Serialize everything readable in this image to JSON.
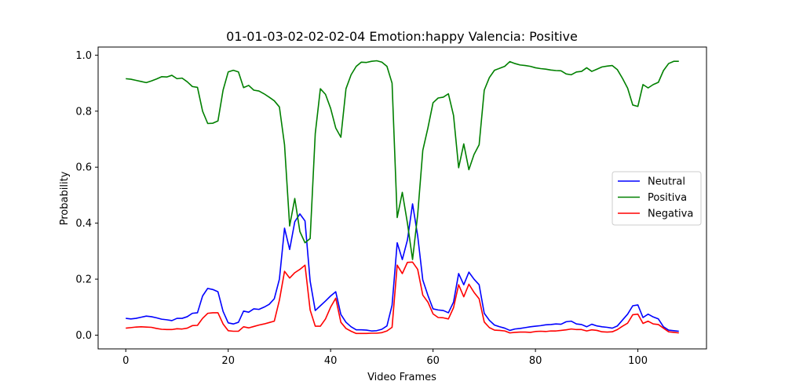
{
  "chart_data": {
    "type": "line",
    "title": "01-01-03-02-02-02-04 Emotion:happy Valencia: Positive",
    "xlabel": "Video Frames",
    "ylabel": "Probability",
    "xlim": [
      -5.4,
      113.4
    ],
    "ylim": [
      -0.049,
      1.029
    ],
    "xticks": [
      0,
      20,
      40,
      60,
      80,
      100
    ],
    "yticks": [
      0.0,
      0.2,
      0.4,
      0.6,
      0.8,
      1.0
    ],
    "xtick_labels": [
      "0",
      "20",
      "40",
      "60",
      "80",
      "100"
    ],
    "ytick_labels": [
      "0.0",
      "0.2",
      "0.4",
      "0.6",
      "0.8",
      "1.0"
    ],
    "grid": false,
    "legend_position": "center-right",
    "series": [
      {
        "name": "Neutral",
        "color": "#0000ff",
        "values": [
          0.06,
          0.058,
          0.06,
          0.064,
          0.068,
          0.066,
          0.062,
          0.057,
          0.055,
          0.052,
          0.06,
          0.06,
          0.066,
          0.078,
          0.08,
          0.14,
          0.167,
          0.163,
          0.155,
          0.085,
          0.044,
          0.04,
          0.046,
          0.086,
          0.082,
          0.094,
          0.092,
          0.1,
          0.11,
          0.13,
          0.2,
          0.382,
          0.306,
          0.405,
          0.433,
          0.408,
          0.193,
          0.088,
          0.105,
          0.122,
          0.14,
          0.155,
          0.074,
          0.046,
          0.03,
          0.019,
          0.019,
          0.018,
          0.015,
          0.016,
          0.021,
          0.033,
          0.107,
          0.33,
          0.27,
          0.34,
          0.469,
          0.355,
          0.197,
          0.142,
          0.094,
          0.09,
          0.088,
          0.08,
          0.118,
          0.22,
          0.18,
          0.225,
          0.2,
          0.18,
          0.078,
          0.053,
          0.036,
          0.03,
          0.025,
          0.017,
          0.022,
          0.024,
          0.027,
          0.03,
          0.032,
          0.034,
          0.037,
          0.038,
          0.04,
          0.039,
          0.048,
          0.05,
          0.04,
          0.038,
          0.03,
          0.039,
          0.033,
          0.03,
          0.028,
          0.025,
          0.033,
          0.054,
          0.075,
          0.105,
          0.108,
          0.063,
          0.075,
          0.065,
          0.058,
          0.03,
          0.018,
          0.016,
          0.014
        ]
      },
      {
        "name": "Positiva",
        "color": "#008000",
        "values": [
          0.916,
          0.914,
          0.91,
          0.906,
          0.902,
          0.908,
          0.915,
          0.923,
          0.922,
          0.928,
          0.916,
          0.918,
          0.905,
          0.888,
          0.885,
          0.8,
          0.756,
          0.757,
          0.765,
          0.875,
          0.94,
          0.946,
          0.94,
          0.884,
          0.892,
          0.875,
          0.872,
          0.862,
          0.85,
          0.837,
          0.815,
          0.68,
          0.39,
          0.488,
          0.37,
          0.33,
          0.345,
          0.72,
          0.88,
          0.86,
          0.81,
          0.74,
          0.707,
          0.88,
          0.93,
          0.96,
          0.975,
          0.974,
          0.978,
          0.98,
          0.975,
          0.96,
          0.9,
          0.42,
          0.51,
          0.4,
          0.27,
          0.43,
          0.66,
          0.74,
          0.83,
          0.847,
          0.85,
          0.862,
          0.785,
          0.598,
          0.683,
          0.591,
          0.645,
          0.68,
          0.875,
          0.92,
          0.946,
          0.953,
          0.96,
          0.977,
          0.97,
          0.965,
          0.963,
          0.96,
          0.955,
          0.952,
          0.95,
          0.947,
          0.945,
          0.944,
          0.933,
          0.93,
          0.94,
          0.942,
          0.955,
          0.942,
          0.95,
          0.958,
          0.961,
          0.963,
          0.948,
          0.917,
          0.882,
          0.822,
          0.817,
          0.895,
          0.883,
          0.895,
          0.903,
          0.945,
          0.97,
          0.978,
          0.978
        ]
      },
      {
        "name": "Negativa",
        "color": "#ff0000",
        "values": [
          0.025,
          0.027,
          0.029,
          0.03,
          0.029,
          0.028,
          0.024,
          0.021,
          0.02,
          0.02,
          0.023,
          0.022,
          0.025,
          0.034,
          0.035,
          0.06,
          0.078,
          0.08,
          0.08,
          0.04,
          0.016,
          0.014,
          0.014,
          0.03,
          0.026,
          0.031,
          0.036,
          0.04,
          0.045,
          0.05,
          0.125,
          0.228,
          0.204,
          0.223,
          0.235,
          0.25,
          0.09,
          0.032,
          0.032,
          0.058,
          0.1,
          0.132,
          0.046,
          0.024,
          0.014,
          0.006,
          0.006,
          0.006,
          0.007,
          0.007,
          0.009,
          0.015,
          0.028,
          0.25,
          0.22,
          0.26,
          0.261,
          0.235,
          0.143,
          0.118,
          0.076,
          0.063,
          0.062,
          0.058,
          0.098,
          0.18,
          0.137,
          0.182,
          0.153,
          0.13,
          0.047,
          0.027,
          0.018,
          0.017,
          0.015,
          0.008,
          0.01,
          0.011,
          0.011,
          0.01,
          0.013,
          0.014,
          0.013,
          0.015,
          0.015,
          0.017,
          0.019,
          0.022,
          0.02,
          0.02,
          0.015,
          0.019,
          0.017,
          0.012,
          0.011,
          0.012,
          0.02,
          0.032,
          0.043,
          0.073,
          0.075,
          0.042,
          0.05,
          0.04,
          0.038,
          0.025,
          0.012,
          0.01,
          0.008
        ]
      }
    ]
  }
}
